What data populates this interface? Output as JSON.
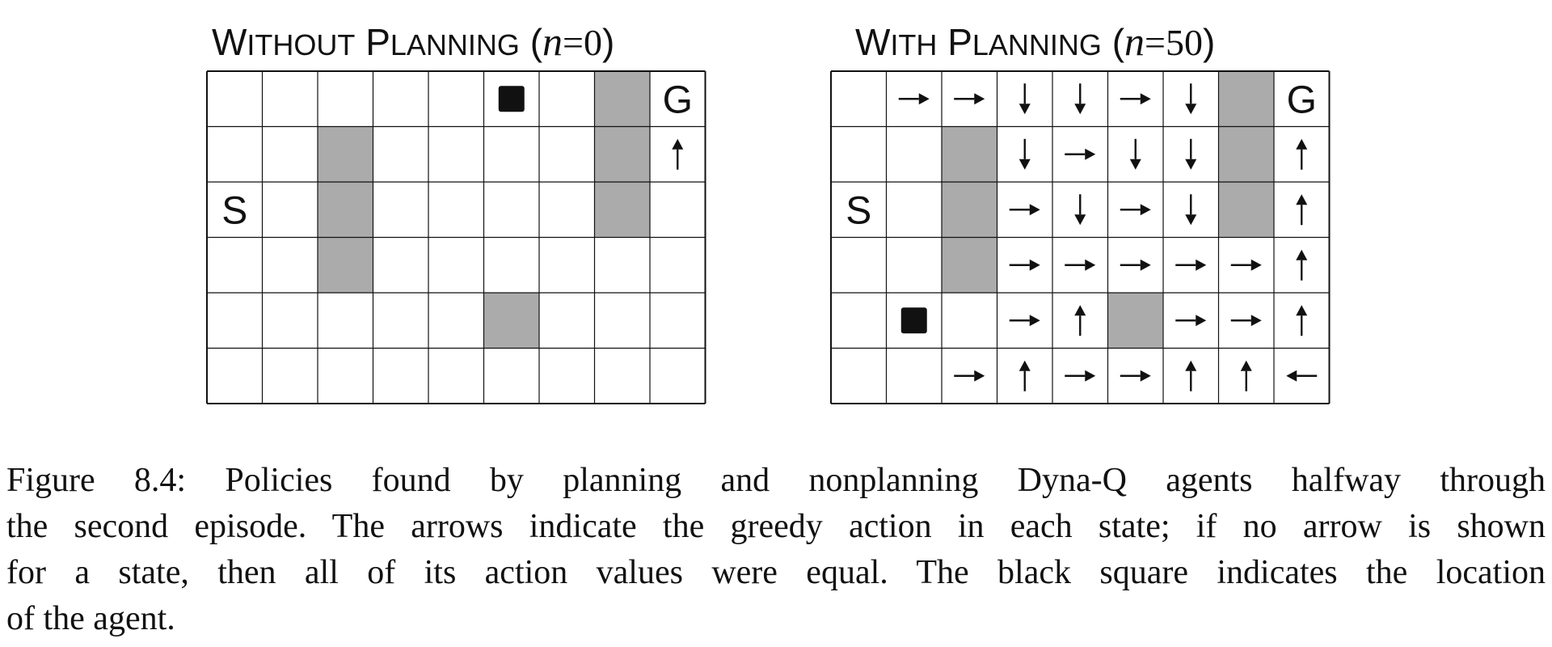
{
  "panels": [
    {
      "title_main": "W",
      "title_sc": "ITHOUT",
      "title_main2": "P",
      "title_sc2": "LANNING",
      "title_open": "(",
      "title_var": "n",
      "title_eq": "=0",
      "title_close": ")",
      "start_label": "S",
      "goal_label": "G",
      "rows": 6,
      "cols": 9,
      "walls": [
        [
          0,
          7
        ],
        [
          1,
          2
        ],
        [
          1,
          7
        ],
        [
          2,
          2
        ],
        [
          2,
          7
        ],
        [
          3,
          2
        ],
        [
          4,
          5
        ]
      ],
      "start": [
        2,
        0
      ],
      "goal": [
        0,
        8
      ],
      "agent": [
        0,
        5
      ],
      "arrows": [
        {
          "r": 1,
          "c": 8,
          "dir": "up"
        }
      ]
    },
    {
      "title_main": "W",
      "title_sc": "ITH",
      "title_main2": "P",
      "title_sc2": "LANNING",
      "title_open": "(",
      "title_var": "n",
      "title_eq": "=50",
      "title_close": ")",
      "start_label": "S",
      "goal_label": "G",
      "rows": 6,
      "cols": 9,
      "walls": [
        [
          0,
          7
        ],
        [
          1,
          2
        ],
        [
          1,
          7
        ],
        [
          2,
          2
        ],
        [
          2,
          7
        ],
        [
          3,
          2
        ],
        [
          4,
          5
        ]
      ],
      "start": [
        2,
        0
      ],
      "goal": [
        0,
        8
      ],
      "agent": [
        4,
        1
      ],
      "arrows": [
        {
          "r": 0,
          "c": 1,
          "dir": "right"
        },
        {
          "r": 0,
          "c": 2,
          "dir": "right"
        },
        {
          "r": 0,
          "c": 3,
          "dir": "down"
        },
        {
          "r": 0,
          "c": 4,
          "dir": "down"
        },
        {
          "r": 0,
          "c": 5,
          "dir": "right"
        },
        {
          "r": 0,
          "c": 6,
          "dir": "down"
        },
        {
          "r": 1,
          "c": 3,
          "dir": "down"
        },
        {
          "r": 1,
          "c": 4,
          "dir": "right"
        },
        {
          "r": 1,
          "c": 5,
          "dir": "down"
        },
        {
          "r": 1,
          "c": 6,
          "dir": "down"
        },
        {
          "r": 1,
          "c": 8,
          "dir": "up"
        },
        {
          "r": 2,
          "c": 3,
          "dir": "right"
        },
        {
          "r": 2,
          "c": 4,
          "dir": "down"
        },
        {
          "r": 2,
          "c": 5,
          "dir": "right"
        },
        {
          "r": 2,
          "c": 6,
          "dir": "down"
        },
        {
          "r": 2,
          "c": 8,
          "dir": "up"
        },
        {
          "r": 3,
          "c": 3,
          "dir": "right"
        },
        {
          "r": 3,
          "c": 4,
          "dir": "right"
        },
        {
          "r": 3,
          "c": 5,
          "dir": "right"
        },
        {
          "r": 3,
          "c": 6,
          "dir": "right"
        },
        {
          "r": 3,
          "c": 7,
          "dir": "right"
        },
        {
          "r": 3,
          "c": 8,
          "dir": "up"
        },
        {
          "r": 4,
          "c": 3,
          "dir": "right"
        },
        {
          "r": 4,
          "c": 4,
          "dir": "up"
        },
        {
          "r": 4,
          "c": 6,
          "dir": "right"
        },
        {
          "r": 4,
          "c": 7,
          "dir": "right"
        },
        {
          "r": 4,
          "c": 8,
          "dir": "up"
        },
        {
          "r": 5,
          "c": 2,
          "dir": "right"
        },
        {
          "r": 5,
          "c": 3,
          "dir": "up"
        },
        {
          "r": 5,
          "c": 4,
          "dir": "right"
        },
        {
          "r": 5,
          "c": 5,
          "dir": "right"
        },
        {
          "r": 5,
          "c": 6,
          "dir": "up"
        },
        {
          "r": 5,
          "c": 7,
          "dir": "up"
        },
        {
          "r": 5,
          "c": 8,
          "dir": "left"
        }
      ]
    }
  ],
  "caption_lines": [
    "Figure 8.4:  Policies found by planning and nonplanning Dyna-Q agents halfway through",
    "the second episode.  The arrows indicate the greedy action in each state; if no arrow is shown",
    "for a state, then all of its action values were equal.  The black square indicates the location",
    "of the agent."
  ],
  "colors": {
    "wall": "#ababab",
    "agent": "#111111",
    "line": "#111111"
  }
}
